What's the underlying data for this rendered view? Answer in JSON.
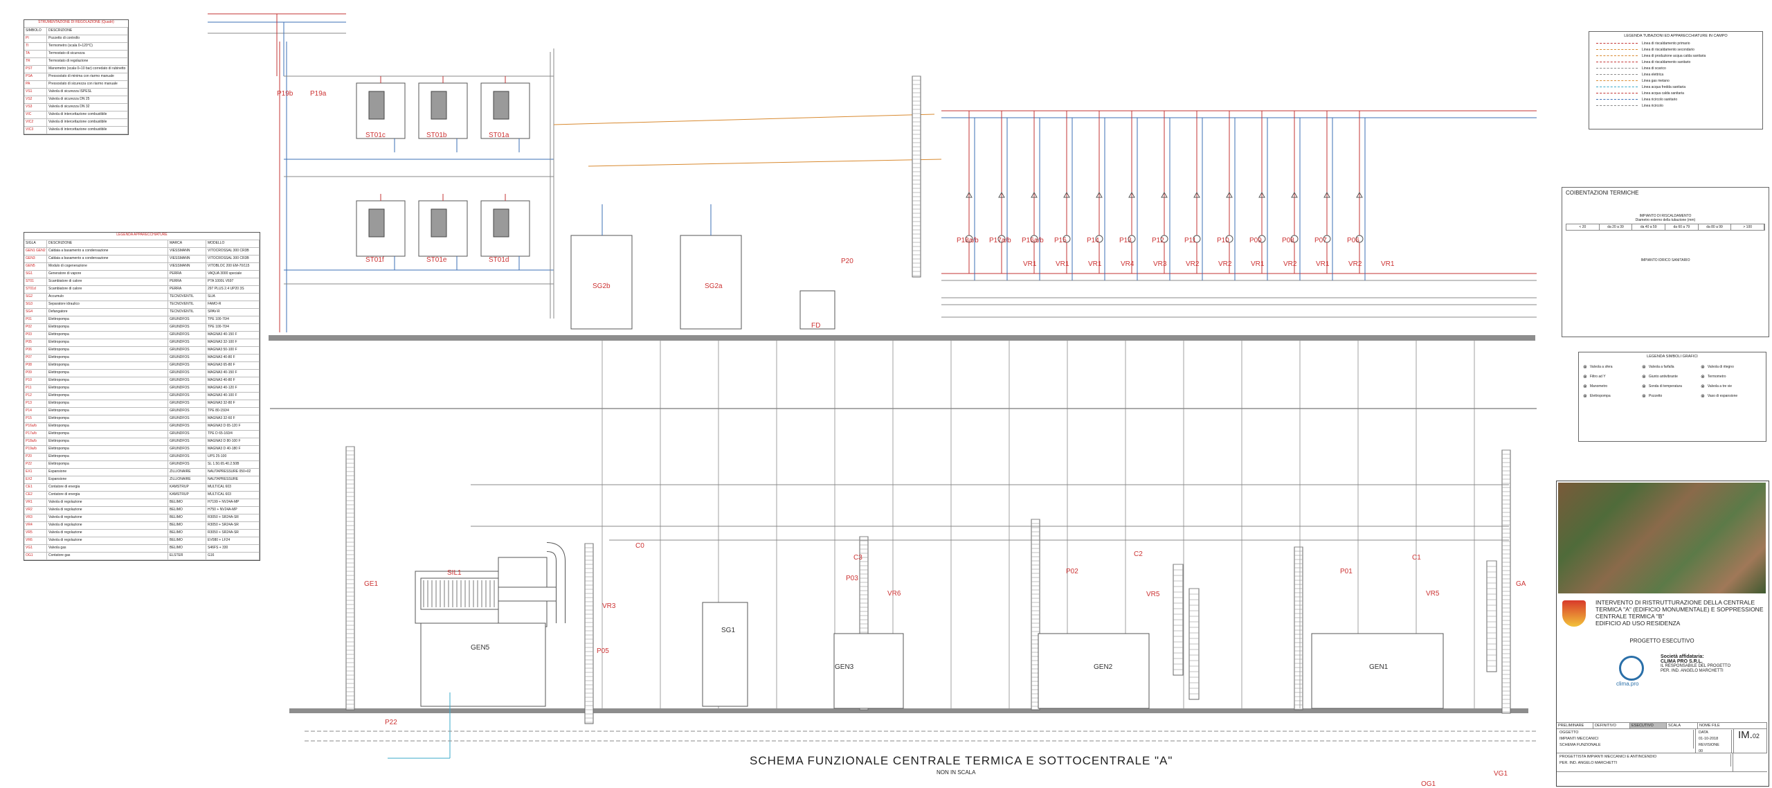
{
  "drawing": {
    "title": "SCHEMA FUNZIONALE CENTRALE TERMICA E SOTTOCENTRALE \"A\"",
    "scale_note": "NON IN SCALA"
  },
  "table_instrumentation": {
    "heading": "STRUMENTAZIONE DI REGOLAZIONE (Quadri)",
    "columns": [
      "SIMBOLO",
      "DESCRIZIONE"
    ],
    "rows": [
      [
        "PI",
        "Pozzetto di controllo"
      ],
      [
        "TI",
        "Termometro (scala 0÷120°C)"
      ],
      [
        "TA",
        "Termostato di sicurezza"
      ],
      [
        "TR",
        "Termostato di regolazione"
      ],
      [
        "PST",
        "Manometro (scala 0÷10 bar) corredato di rubinetto"
      ],
      [
        "PSA",
        "Pressostato di minima con riarmo manuale"
      ],
      [
        "PA",
        "Pressostato di sicurezza con riarmo manuale"
      ],
      [
        "VS1",
        "Valvola di sicurezza ISPESL"
      ],
      [
        "VS2",
        "Valvola di sicurezza DN 25"
      ],
      [
        "VS3",
        "Valvola di sicurezza DN 32"
      ],
      [
        "VIC",
        "Valvola di intercettazione combustibile"
      ],
      [
        "VIC2",
        "Valvola di intercettazione combustibile"
      ],
      [
        "VIC3",
        "Valvola di intercettazione combustibile"
      ]
    ]
  },
  "table_equipment": {
    "heading": "LEGENDA APPARECCHIATURE",
    "columns": [
      "SIGLA",
      "DESCRIZIONE",
      "MARCA",
      "MODELLO"
    ],
    "rows": [
      [
        "GEN1 GEN2",
        "Caldaia a basamento a condensazione",
        "VIESSMANN",
        "VITOCROSSAL 300 CR3B"
      ],
      [
        "GEN3",
        "Caldaia a basamento a condensazione",
        "VIESSMANN",
        "VITOCROSSAL 300 CR3B"
      ],
      [
        "GEN5",
        "Modulo di cogenerazione",
        "VIESSMANN",
        "VITOBLOC 200 EM-70/115"
      ],
      [
        "SG1",
        "Generatore di vapore",
        "PERRA",
        "VAQUA 3000 speciale"
      ],
      [
        "ST01",
        "Scambiatore di calore",
        "PERRA",
        "PTA 1000L V697"
      ],
      [
        "ST01d",
        "Scambiatore di calore",
        "PERRA",
        "297 PLUS 2.4 UP20 3S"
      ],
      [
        "SG2",
        "Accumulo",
        "TECNOVENTIL",
        "SLIA"
      ],
      [
        "SG3",
        "Separatore idraulico",
        "TECNOVENTIL",
        "FAMO-R"
      ],
      [
        "SG4",
        "Defangatore",
        "TECNOVENTIL",
        "SPAV-R"
      ],
      [
        "P01",
        "Elettropompa",
        "GRUNDFOS",
        "TPE 100-70/4"
      ],
      [
        "P02",
        "Elettropompa",
        "GRUNDFOS",
        "TPE 100-70/4"
      ],
      [
        "P03",
        "Elettropompa",
        "GRUNDFOS",
        "MAGNA3 40-150 F"
      ],
      [
        "P05",
        "Elettropompa",
        "GRUNDFOS",
        "MAGNA3 32-100 F"
      ],
      [
        "P06",
        "Elettropompa",
        "GRUNDFOS",
        "MAGNA3 50-100 F"
      ],
      [
        "P07",
        "Elettropompa",
        "GRUNDFOS",
        "MAGNA3 40-80 F"
      ],
      [
        "P08",
        "Elettropompa",
        "GRUNDFOS",
        "MAGNA3 65-80 F"
      ],
      [
        "P09",
        "Elettropompa",
        "GRUNDFOS",
        "MAGNA3 40-150 F"
      ],
      [
        "P10",
        "Elettropompa",
        "GRUNDFOS",
        "MAGNA3 40-80 F"
      ],
      [
        "P11",
        "Elettropompa",
        "GRUNDFOS",
        "MAGNA3 40-120 F"
      ],
      [
        "P12",
        "Elettropompa",
        "GRUNDFOS",
        "MAGNA3 40-100 F"
      ],
      [
        "P13",
        "Elettropompa",
        "GRUNDFOS",
        "MAGNA3 32-80 F"
      ],
      [
        "P14",
        "Elettropompa",
        "GRUNDFOS",
        "TPE 80-150/4"
      ],
      [
        "P15",
        "Elettropompa",
        "GRUNDFOS",
        "MAGNA3 32-60 F"
      ],
      [
        "P16a/b",
        "Elettropompa",
        "GRUNDFOS",
        "MAGNA3 D 65-120 F"
      ],
      [
        "P17a/b",
        "Elettropompa",
        "GRUNDFOS",
        "TPE D 65-160/4"
      ],
      [
        "P18a/b",
        "Elettropompa",
        "GRUNDFOS",
        "MAGNA3 D 80-100 F"
      ],
      [
        "P19a/b",
        "Elettropompa",
        "GRUNDFOS",
        "MAGNA3 D 40-180 F"
      ],
      [
        "P20",
        "Elettropompa",
        "GRUNDFOS",
        "UPS 25-100"
      ],
      [
        "P22",
        "Elettropompa",
        "GRUNDFOS",
        "SL 1.50.65.40.2.50B"
      ],
      [
        "EX1",
        "Espansione",
        "ZILLIONAIRE",
        "NAUTAPRESSURE 050+02"
      ],
      [
        "EX2",
        "Espansione",
        "ZILLIONAIRE",
        "NAUTAPRESSURE"
      ],
      [
        "CE1",
        "Contatore di energia",
        "KAMSTRUP",
        "MULTICAL 603"
      ],
      [
        "CE2",
        "Contatore di energia",
        "KAMSTRUP",
        "MULTICAL 603"
      ],
      [
        "VR1",
        "Valvola di regolazione",
        "BELIMO",
        "H7199 + NV24A-MP"
      ],
      [
        "VR2",
        "Valvola di regolazione",
        "BELIMO",
        "H750 + NV24A-MP"
      ],
      [
        "VR3",
        "Valvola di regolazione",
        "BELIMO",
        "R3050 + SR24A-SR"
      ],
      [
        "VR4",
        "Valvola di regolazione",
        "BELIMO",
        "R3050 + SR24A-SR"
      ],
      [
        "VR5",
        "Valvola di regolazione",
        "BELIMO",
        "R3050 + SR24A-SR"
      ],
      [
        "VR6",
        "Valvola di regolazione",
        "BELIMO",
        "EV080 + LF24"
      ],
      [
        "VG1",
        "Valvola gas",
        "BELIMO",
        "S46FS + 330"
      ],
      [
        "OG1",
        "Contatore gas",
        "ELSTER",
        "G16"
      ]
    ]
  },
  "legend_pipes": {
    "heading": "LEGENDA TUBAZIONI ED APPARECCHIATURE IN CAMPO",
    "items": [
      "Linea di riscaldamento primario",
      "Linea di riscaldamento secondario",
      "Linea di produzione acqua calda sanitaria",
      "Linea di riscaldamento sanitario",
      "Linea di scarico",
      "Linea elettrica",
      "Linea gas metano",
      "Linea acqua fredda sanitaria",
      "Linea acqua calda sanitaria",
      "Linea ricircolo sanitario",
      "Linea ricircolo"
    ]
  },
  "legend_symbols": {
    "heading": "LEGENDA SIMBOLI GRAFICI",
    "items": [
      "Valvola a sfera",
      "Valvola a farfalla",
      "Valvola di ritegno",
      "Filtro ad Y",
      "Giunto antivibrante",
      "Termometro",
      "Manometro",
      "Sonda di temperatura",
      "Valvola a tre vie",
      "Elettropompa",
      "Pozzetto",
      "Vaso di espansione"
    ]
  },
  "coibentazioni": {
    "heading": "COIBENTAZIONI TERMICHE",
    "sub": "IMPIANTO DI RISCALDAMENTO",
    "diam_label": "Diametro esterno della tubazione (mm)",
    "diameters": [
      "< 20",
      "da 20 a 39",
      "da 40 a 59",
      "da 60 a 79",
      "da 80 a 99",
      "> 100"
    ],
    "sub2": "IMPIANTO IDRICO SANITARIO"
  },
  "circuits_top": [
    "P18a/b",
    "P17a/b",
    "P16a/b",
    "P15",
    "P14",
    "P13",
    "P12",
    "P11",
    "P10",
    "P09",
    "P08",
    "P07",
    "P06"
  ],
  "valves_top": [
    "VR1",
    "VR1",
    "VR1",
    "VR4",
    "VR3",
    "VR2",
    "VR2",
    "VR1",
    "VR2",
    "VR1",
    "VR2",
    "VR1"
  ],
  "equipment_labels": {
    "st_top": [
      "ST01c",
      "ST01b",
      "ST01a"
    ],
    "st_bottom": [
      "ST01f",
      "ST01e",
      "ST01d"
    ],
    "boilers": [
      "GEN3",
      "GEN2",
      "GEN1"
    ],
    "cogen": "GEN5",
    "silencer": "SIL1",
    "stores": [
      "SG2b",
      "SG2a"
    ],
    "sep": "SG1",
    "fd": "FD",
    "p19": [
      "P19b",
      "P19a"
    ],
    "p20": "P20",
    "p22": "P22",
    "vr_low": [
      "VR3",
      "VR6",
      "VR5",
      "VR5"
    ],
    "p_low": [
      "P05",
      "P03",
      "P02",
      "P01"
    ],
    "c_low": [
      "C0",
      "C3",
      "C2",
      "C1"
    ],
    "ge1": "GE1",
    "ga": "GA",
    "vg1": "VG1",
    "og1": "OG1"
  },
  "title_block": {
    "project_lines": [
      "INTERVENTO DI RISTRUTTURAZIONE DELLA CENTRALE TERMICA \"A\" (EDIFICIO MONUMENTALE) E SOPPRESSIONE CENTRALE TERMICA \"B\"",
      "EDIFICIO AD USO RESIDENZA"
    ],
    "phase": "PROGETTO ESECUTIVO",
    "company_title": "Società affidataria:",
    "company_name": "CLIMA PRO S.R.L.",
    "company_resp": "IL RESPONSABILE DEL PROGETTO",
    "company_eng": "PER. IND. ANGELO MARCHETTI",
    "logo": "clima.pro",
    "labels": [
      "PRELIMINARE",
      "DEFINITIVO",
      "ESECUTIVO",
      "SCALA",
      "NOME FILE"
    ],
    "oggetto_label": "OGGETTO",
    "oggetto": [
      "IMPIANTI MECCANICI",
      "SCHEMA FUNZIONALE"
    ],
    "data_label": "DATA",
    "data": "01-10-2018",
    "rev_label": "REVISIONE",
    "rev": "00",
    "designer": "PROGETTISTA IMPIANTI MECCANICI E ANTINCENDIO",
    "designer_name": "PER. IND. ANGELO MARCHETTI",
    "code": "IM.",
    "code_num": "02"
  },
  "colors": {
    "red": "#c33333",
    "blue": "#3b6fb6",
    "orange": "#d8892f",
    "gray": "#888888",
    "cyan": "#39a9c9",
    "bar": "#8d8d8d"
  }
}
